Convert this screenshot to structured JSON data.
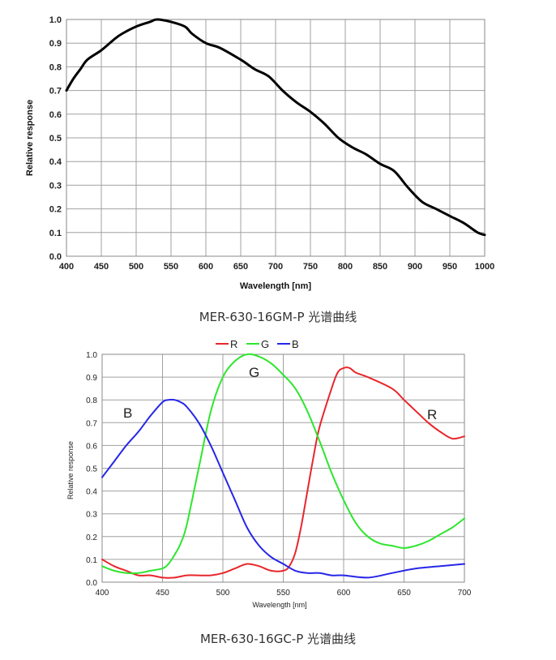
{
  "chart_data": [
    {
      "type": "line",
      "title": "",
      "xlabel": "Wavelength [nm]",
      "ylabel": "Relative response",
      "xlim": [
        400,
        1000
      ],
      "ylim": [
        0,
        1.0
      ],
      "xticks": [
        400,
        450,
        500,
        550,
        600,
        650,
        700,
        750,
        800,
        850,
        900,
        950,
        1000
      ],
      "yticks": [
        0.0,
        0.1,
        0.2,
        0.3,
        0.4,
        0.5,
        0.6,
        0.7,
        0.8,
        0.9,
        1.0
      ],
      "grid": true,
      "series": [
        {
          "color": "#000000",
          "x": [
            400,
            410,
            420,
            430,
            450,
            470,
            480,
            500,
            520,
            530,
            550,
            570,
            580,
            600,
            620,
            650,
            670,
            690,
            710,
            730,
            750,
            770,
            790,
            810,
            830,
            850,
            870,
            890,
            910,
            930,
            950,
            970,
            990,
            1000
          ],
          "y": [
            0.7,
            0.75,
            0.79,
            0.83,
            0.87,
            0.92,
            0.94,
            0.97,
            0.99,
            1.0,
            0.99,
            0.97,
            0.94,
            0.9,
            0.88,
            0.83,
            0.79,
            0.76,
            0.7,
            0.65,
            0.61,
            0.56,
            0.5,
            0.46,
            0.43,
            0.39,
            0.36,
            0.29,
            0.23,
            0.2,
            0.17,
            0.14,
            0.1,
            0.09
          ]
        }
      ]
    },
    {
      "type": "line",
      "title": "",
      "xlabel": "Wavelength [nm]",
      "ylabel": "Relative response",
      "xlim": [
        400,
        700
      ],
      "ylim": [
        0,
        1.0
      ],
      "xticks": [
        400,
        450,
        500,
        550,
        600,
        650,
        700
      ],
      "yticks": [
        0.0,
        0.1,
        0.2,
        0.3,
        0.4,
        0.5,
        0.6,
        0.7,
        0.8,
        0.9,
        1.0
      ],
      "grid": true,
      "legend": {
        "position": "top",
        "entries": [
          "R",
          "G",
          "B"
        ]
      },
      "annotations": [
        "B",
        "G",
        "R"
      ],
      "series": [
        {
          "name": "R",
          "color": "#e8262b",
          "x": [
            400,
            410,
            420,
            430,
            440,
            450,
            460,
            470,
            480,
            490,
            500,
            510,
            520,
            530,
            540,
            550,
            555,
            560,
            565,
            570,
            575,
            580,
            590,
            595,
            600,
            605,
            610,
            620,
            640,
            650,
            660,
            670,
            680,
            690,
            700
          ],
          "y": [
            0.1,
            0.07,
            0.05,
            0.03,
            0.03,
            0.02,
            0.02,
            0.03,
            0.03,
            0.03,
            0.04,
            0.06,
            0.08,
            0.07,
            0.05,
            0.05,
            0.07,
            0.13,
            0.25,
            0.4,
            0.55,
            0.68,
            0.85,
            0.92,
            0.94,
            0.94,
            0.92,
            0.9,
            0.85,
            0.8,
            0.75,
            0.7,
            0.66,
            0.63,
            0.64
          ]
        },
        {
          "name": "G",
          "color": "#2ee62e",
          "x": [
            400,
            410,
            420,
            430,
            440,
            450,
            455,
            460,
            465,
            470,
            480,
            490,
            500,
            510,
            520,
            530,
            540,
            550,
            560,
            570,
            580,
            590,
            600,
            610,
            620,
            630,
            640,
            650,
            660,
            670,
            680,
            690,
            700
          ],
          "y": [
            0.07,
            0.05,
            0.04,
            0.04,
            0.05,
            0.06,
            0.08,
            0.12,
            0.17,
            0.25,
            0.5,
            0.75,
            0.9,
            0.97,
            1.0,
            0.99,
            0.96,
            0.91,
            0.85,
            0.75,
            0.62,
            0.48,
            0.36,
            0.26,
            0.2,
            0.17,
            0.16,
            0.15,
            0.16,
            0.18,
            0.21,
            0.24,
            0.28
          ]
        },
        {
          "name": "B",
          "color": "#2626e8",
          "x": [
            400,
            410,
            420,
            430,
            440,
            450,
            455,
            460,
            465,
            470,
            480,
            490,
            500,
            510,
            520,
            530,
            540,
            550,
            560,
            570,
            580,
            590,
            600,
            620,
            640,
            660,
            680,
            700
          ],
          "y": [
            0.46,
            0.53,
            0.6,
            0.66,
            0.73,
            0.79,
            0.8,
            0.8,
            0.79,
            0.77,
            0.7,
            0.6,
            0.48,
            0.36,
            0.24,
            0.16,
            0.11,
            0.08,
            0.05,
            0.04,
            0.04,
            0.03,
            0.03,
            0.02,
            0.04,
            0.06,
            0.07,
            0.08
          ]
        }
      ]
    }
  ],
  "captions": [
    "MER-630-16GM-P 光谱曲线",
    "MER-630-16GC-P 光谱曲线"
  ],
  "annotation_labels": {
    "b": "B",
    "g": "G",
    "r": "R"
  }
}
